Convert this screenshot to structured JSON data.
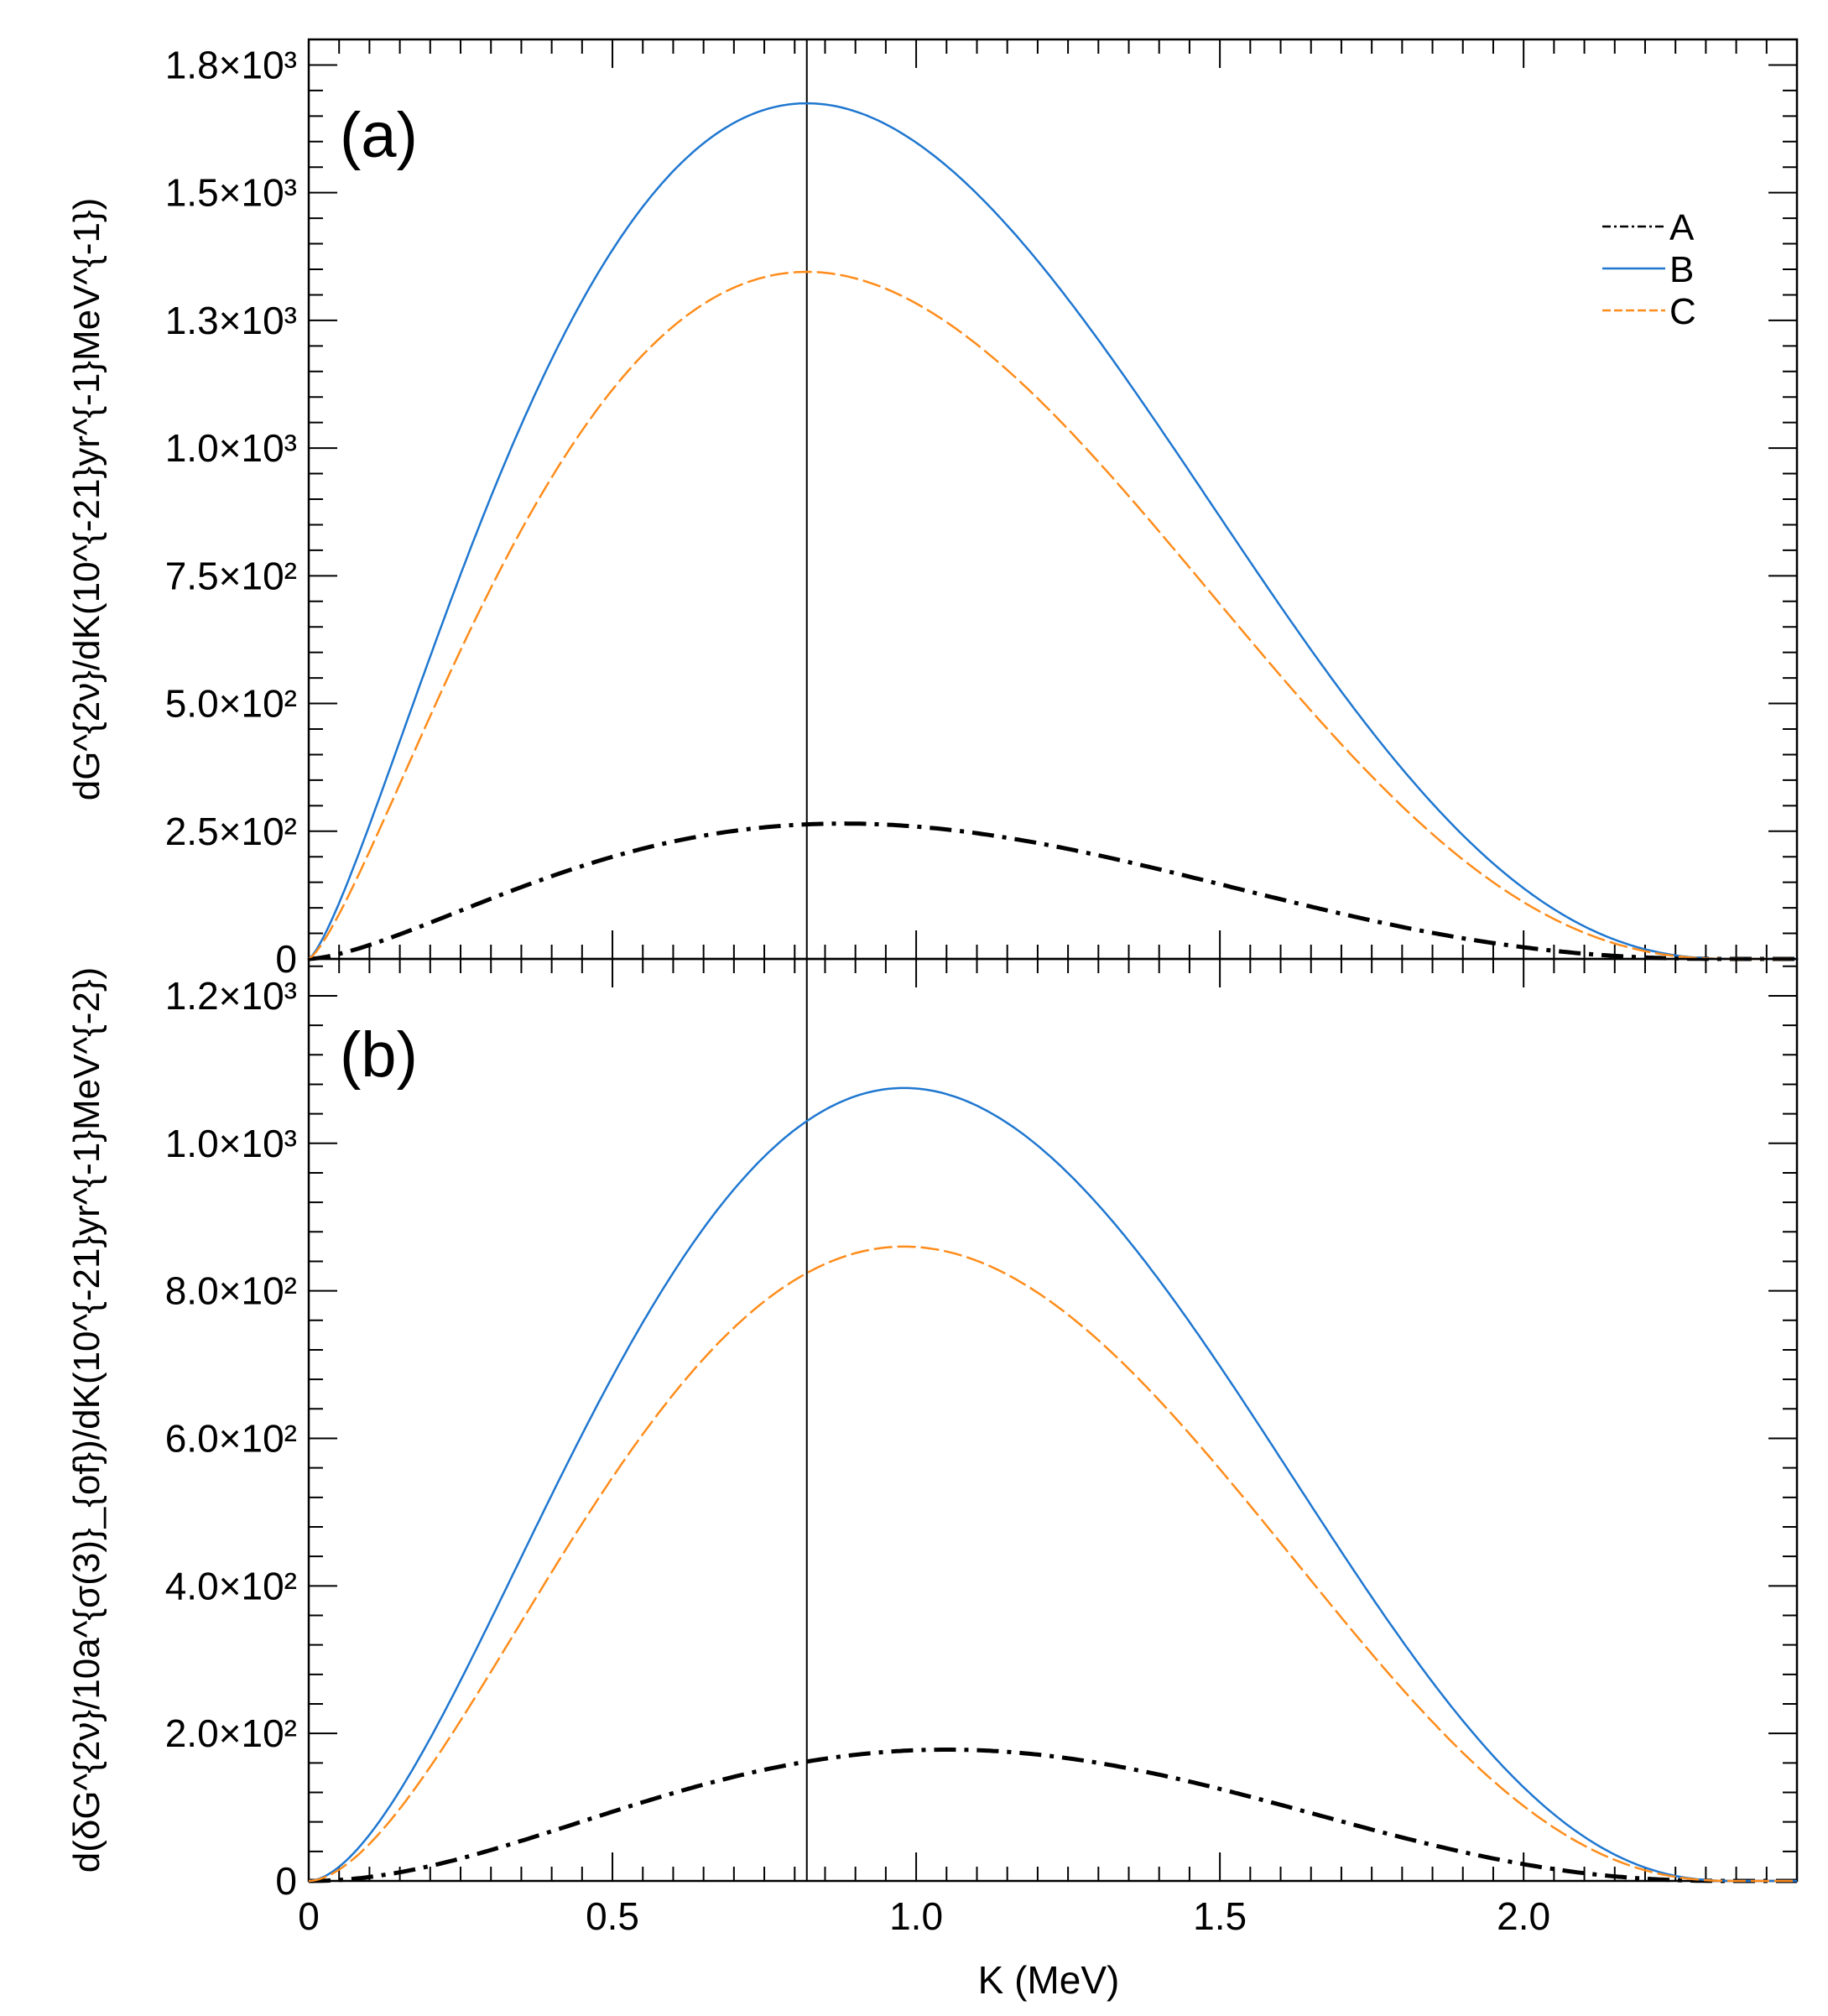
{
  "chart_data": [
    {
      "panel": "a",
      "type": "line",
      "panel_label": "(a)",
      "ylabel": "dG^{2ν}/dK(10^{-21}yr^{-1}MeV^{-1})",
      "ylim": [
        0,
        1800
      ],
      "xlim": [
        0,
        2.45
      ],
      "y_ticks": [
        {
          "value": 0,
          "label": "0"
        },
        {
          "value": 250,
          "label": "2.5×10²"
        },
        {
          "value": 500,
          "label": "5.0×10²"
        },
        {
          "value": 750,
          "label": "7.5×10²"
        },
        {
          "value": 1000,
          "label": "1.0×10³"
        },
        {
          "value": 1250,
          "label": "1.3×10³"
        },
        {
          "value": 1500,
          "label": "1.5×10³"
        },
        {
          "value": 1750,
          "label": "1.8×10³"
        }
      ],
      "vertical_line_x": 0.82,
      "series": [
        {
          "name": "A",
          "style": "dashdot",
          "color": "#000000",
          "peak_x": 0.88,
          "peak_y": 265,
          "q": 2.6
        },
        {
          "name": "B",
          "style": "solid",
          "color": "#1f77d0",
          "peak_x": 0.82,
          "peak_y": 1675,
          "q": 2.5
        },
        {
          "name": "C",
          "style": "dashed",
          "color": "#ff8c1a",
          "peak_x": 0.82,
          "peak_y": 1345,
          "q": 2.5
        }
      ]
    },
    {
      "panel": "b",
      "type": "line",
      "panel_label": "(b)",
      "ylabel": "d(δG^{2ν}/10a^{σ(3)}_{of})/dK(10^{-21}yr^{-1}MeV^{-2})",
      "ylim": [
        0,
        1250
      ],
      "xlim": [
        0,
        2.45
      ],
      "y_ticks": [
        {
          "value": 0,
          "label": "0"
        },
        {
          "value": 200,
          "label": "2.0×10²"
        },
        {
          "value": 400,
          "label": "4.0×10²"
        },
        {
          "value": 600,
          "label": "6.0×10²"
        },
        {
          "value": 800,
          "label": "8.0×10²"
        },
        {
          "value": 1000,
          "label": "1.0×10³"
        },
        {
          "value": 1200,
          "label": "1.2×10³"
        }
      ],
      "vertical_line_x": 0.82,
      "series": [
        {
          "name": "A",
          "style": "dashdot",
          "color": "#000000",
          "peak_x": 1.05,
          "peak_y": 178,
          "q": 2.6
        },
        {
          "name": "B",
          "style": "solid",
          "color": "#1f77d0",
          "peak_x": 0.98,
          "peak_y": 1075,
          "q": 2.5
        },
        {
          "name": "C",
          "style": "dashed",
          "color": "#ff8c1a",
          "peak_x": 0.98,
          "peak_y": 860,
          "q": 2.5
        }
      ]
    }
  ],
  "x_axis": {
    "label": "K (MeV)",
    "ticks": [
      {
        "value": 0,
        "label": "0"
      },
      {
        "value": 0.5,
        "label": "0.5"
      },
      {
        "value": 1.0,
        "label": "1.0"
      },
      {
        "value": 1.5,
        "label": "1.5"
      },
      {
        "value": 2.0,
        "label": "2.0"
      }
    ]
  },
  "legend": {
    "placement": "top-right",
    "entries": [
      {
        "label": "A",
        "style": "dashdot",
        "color": "#000000"
      },
      {
        "label": "B",
        "style": "solid",
        "color": "#1f77d0"
      },
      {
        "label": "C",
        "style": "dashed",
        "color": "#ff8c1a"
      }
    ]
  },
  "endpoint": 2.35
}
